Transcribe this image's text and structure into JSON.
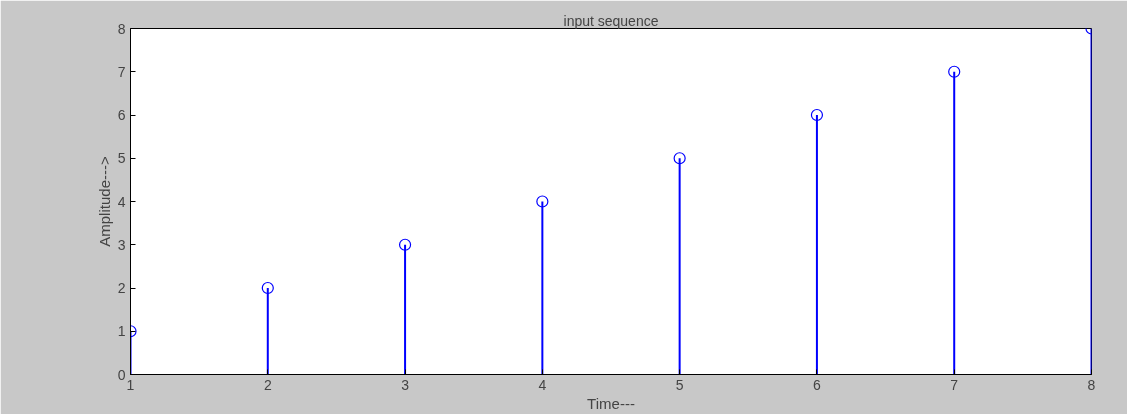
{
  "chart_data": {
    "type": "lollipop",
    "title": "input sequence",
    "xlabel": "Time---",
    "ylabel": "Amplitude--->",
    "x": [
      1,
      2,
      3,
      4,
      5,
      6,
      7,
      8
    ],
    "series": [
      {
        "color": "#0000ff",
        "values": [
          1,
          2,
          3,
          4,
          5,
          6,
          7,
          8
        ]
      }
    ],
    "marker": "circle",
    "xlim": [
      1,
      8
    ],
    "ylim": [
      0,
      8
    ],
    "xticks": [
      1,
      2,
      3,
      4,
      5,
      6,
      7,
      8
    ],
    "yticks": [
      0,
      1,
      2,
      3,
      4,
      5,
      6,
      7,
      8
    ]
  }
}
